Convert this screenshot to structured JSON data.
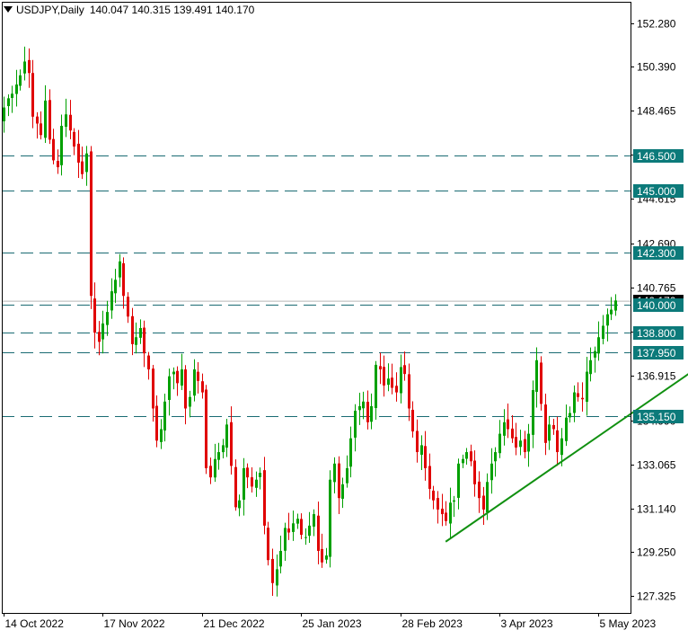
{
  "header": {
    "symbol": "USDJPY,Daily",
    "ohlc": "140.047 140.315 139.491 140.170"
  },
  "colors": {
    "bull": "#00a000",
    "bear": "#e00000",
    "level_line": "#1a6b73",
    "level_label_bg": "#0c7a7a",
    "trendline": "#109010",
    "axis": "#000000",
    "price_line": "#b8b8b8",
    "current_label_bg": "#000000"
  },
  "chart_data": {
    "type": "candlestick",
    "title": "USDJPY,Daily",
    "ylim": [
      126.6,
      153.2
    ],
    "y_ticks": [
      "152.280",
      "150.390",
      "148.465",
      "146.540",
      "144.615",
      "142.690",
      "140.765",
      "138.840",
      "136.915",
      "134.990",
      "133.065",
      "131.140",
      "129.250",
      "127.325"
    ],
    "x_tick_labels": [
      {
        "label": "14 Oct 2022",
        "bar": 0
      },
      {
        "label": "17 Nov 2022",
        "bar": 24
      },
      {
        "label": "21 Dec 2022",
        "bar": 48
      },
      {
        "label": "25 Jan 2023",
        "bar": 72
      },
      {
        "label": "28 Feb 2023",
        "bar": 96
      },
      {
        "label": "3 Apr 2023",
        "bar": 120
      },
      {
        "label": "5 May 2023",
        "bar": 144
      }
    ],
    "current_price": "140.170",
    "horizontal_levels": [
      "146.500",
      "145.000",
      "142.300",
      "140.000",
      "138.800",
      "137.950",
      "135.150"
    ],
    "trendline": {
      "from": {
        "bar": 107,
        "price": 129.7
      },
      "to": {
        "bar": 173,
        "price": 137.9
      }
    },
    "closes": [
      148.6,
      149.0,
      149.2,
      149.6,
      150.0,
      150.6,
      150.1,
      148.2,
      147.9,
      147.4,
      148.9,
      147.2,
      146.3,
      146.0,
      147.8,
      148.3,
      147.6,
      146.9,
      146.2,
      145.7,
      146.6,
      140.4,
      138.8,
      138.4,
      139.2,
      139.7,
      140.6,
      141.1,
      141.9,
      140.4,
      139.5,
      138.3,
      138.6,
      139.0,
      137.9,
      137.2,
      135.5,
      134.1,
      134.6,
      135.8,
      136.9,
      137.1,
      136.6,
      137.2,
      135.5,
      136.0,
      137.2,
      136.7,
      136.2,
      132.9,
      132.5,
      133.3,
      133.6,
      133.9,
      134.8,
      133.0,
      131.2,
      131.5,
      132.9,
      132.5,
      132.1,
      132.4,
      132.7,
      130.4,
      128.9,
      127.9,
      128.5,
      129.3,
      130.3,
      130.1,
      130.5,
      130.7,
      130.0,
      129.9,
      130.4,
      130.9,
      129.3,
      128.8,
      129.1,
      132.4,
      133.1,
      131.6,
      132.2,
      132.9,
      134.2,
      135.4,
      135.6,
      135.8,
      134.9,
      135.6,
      137.4,
      137.2,
      136.5,
      136.8,
      136.4,
      136.2,
      137.3,
      137.0,
      135.5,
      134.5,
      133.6,
      133.9,
      132.9,
      132.0,
      131.5,
      131.1,
      130.9,
      130.6,
      131.4,
      131.5,
      133.1,
      133.3,
      133.6,
      133.2,
      132.2,
      131.6,
      131.1,
      132.3,
      133.1,
      133.6,
      134.4,
      134.9,
      134.6,
      134.2,
      133.8,
      134.1,
      133.6,
      134.4,
      136.3,
      137.6,
      135.7,
      134.0,
      134.8,
      134.6,
      133.6,
      134.2,
      135.1,
      135.3,
      136.2,
      136.0,
      135.9,
      137.1,
      137.6,
      138.0,
      138.6,
      139.1,
      139.6,
      139.8,
      140.2
    ]
  }
}
